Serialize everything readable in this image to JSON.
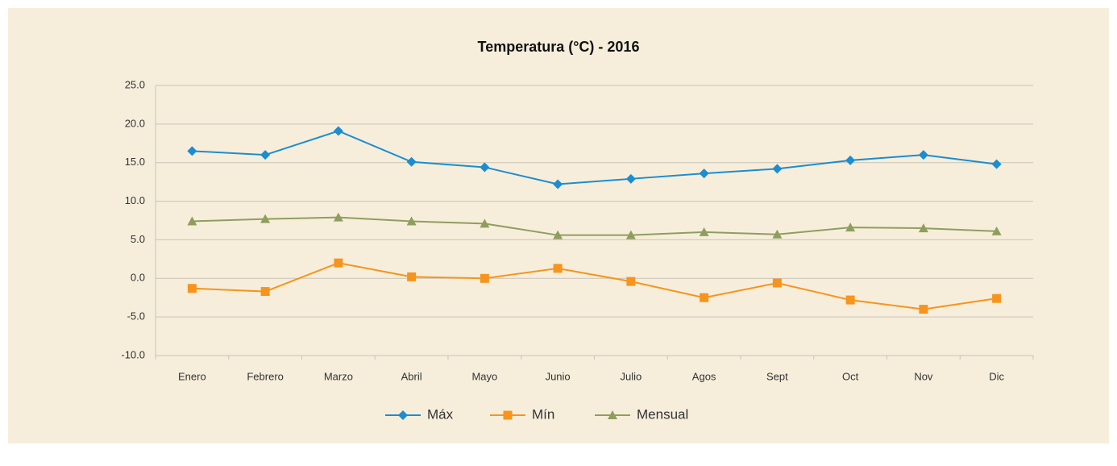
{
  "chart_data": {
    "type": "line",
    "title": "Temperatura (°C) - 2016",
    "categories": [
      "Enero",
      "Febrero",
      "Marzo",
      "Abril",
      "Mayo",
      "Junio",
      "Julio",
      "Agos",
      "Sept",
      "Oct",
      "Nov",
      "Dic"
    ],
    "series": [
      {
        "name": "Máx",
        "color": "#1b8dd0",
        "marker": "diamond",
        "values": [
          16.5,
          16.0,
          19.1,
          15.1,
          14.4,
          12.2,
          12.9,
          13.6,
          14.2,
          15.3,
          16.0,
          14.8
        ]
      },
      {
        "name": "Mín",
        "color": "#f7941d",
        "marker": "square",
        "values": [
          -1.3,
          -1.7,
          2.0,
          0.2,
          0.0,
          1.3,
          -0.4,
          -2.5,
          -0.6,
          -2.8,
          -4.0,
          -2.6
        ]
      },
      {
        "name": "Mensual",
        "color": "#8f9e5e",
        "marker": "triangle",
        "values": [
          7.4,
          7.7,
          7.9,
          7.4,
          7.1,
          5.6,
          5.6,
          6.0,
          5.7,
          6.6,
          6.5,
          6.1
        ]
      }
    ],
    "ylim": [
      -10,
      25
    ],
    "yticks": [
      {
        "value": -10,
        "label": "-10.0"
      },
      {
        "value": -5,
        "label": "-5.0"
      },
      {
        "value": 0,
        "label": "0.0"
      },
      {
        "value": 5,
        "label": "5.0"
      },
      {
        "value": 10,
        "label": "10.0"
      },
      {
        "value": 15,
        "label": "15.0"
      },
      {
        "value": 20,
        "label": "20.0"
      },
      {
        "value": 25,
        "label": "25.0"
      }
    ],
    "grid": true,
    "legend": "bottom"
  }
}
